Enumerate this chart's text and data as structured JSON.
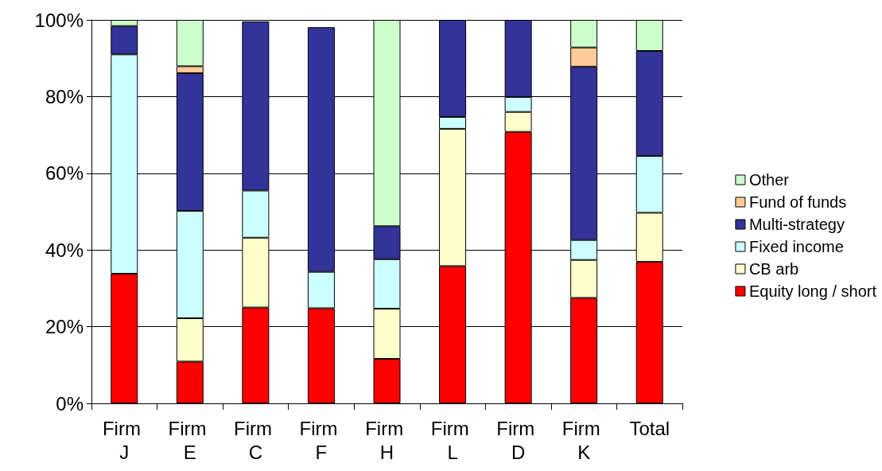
{
  "chart_data": {
    "type": "bar",
    "stacked": true,
    "categories": [
      "Firm J",
      "Firm E",
      "Firm C",
      "Firm F",
      "Firm H",
      "Firm L",
      "Firm D",
      "Firm K",
      "Total"
    ],
    "series": [
      {
        "name": "Equity long / short",
        "color": "#ff0000",
        "values": [
          33.8,
          10.9,
          25.0,
          24.8,
          11.6,
          35.8,
          70.8,
          27.5,
          36.9
        ]
      },
      {
        "name": "CB arb",
        "color": "#ffffcc",
        "values": [
          null,
          11.3,
          18.2,
          null,
          13.1,
          35.8,
          5.2,
          9.9,
          12.8
        ]
      },
      {
        "name": "Fixed income",
        "color": "#ccffff",
        "values": [
          57.2,
          28.0,
          12.3,
          9.5,
          12.9,
          3.1,
          3.9,
          5.2,
          14.8
        ]
      },
      {
        "name": "Multi-strategy",
        "color": "#333399",
        "values": [
          7.4,
          35.9,
          44.1,
          63.8,
          8.6,
          25.3,
          20.1,
          45.2,
          27.4
        ]
      },
      {
        "name": "Fund of funds",
        "color": "#ffcc99",
        "values": [
          null,
          1.8,
          null,
          null,
          null,
          null,
          null,
          5.0,
          null
        ]
      },
      {
        "name": "Other",
        "color": "#ccffcc",
        "values": [
          1.6,
          12.1,
          null,
          null,
          53.8,
          null,
          null,
          7.2,
          8.1
        ]
      }
    ],
    "ylim": [
      0,
      100
    ],
    "yticks": [
      {
        "value": 0,
        "label": "0%"
      },
      {
        "value": 20,
        "label": "20%"
      },
      {
        "value": 40,
        "label": "40%"
      },
      {
        "value": 60,
        "label": "60%"
      },
      {
        "value": 80,
        "label": "80%"
      },
      {
        "value": 100,
        "label": "100%"
      }
    ],
    "grid": "y",
    "legend": "right"
  }
}
